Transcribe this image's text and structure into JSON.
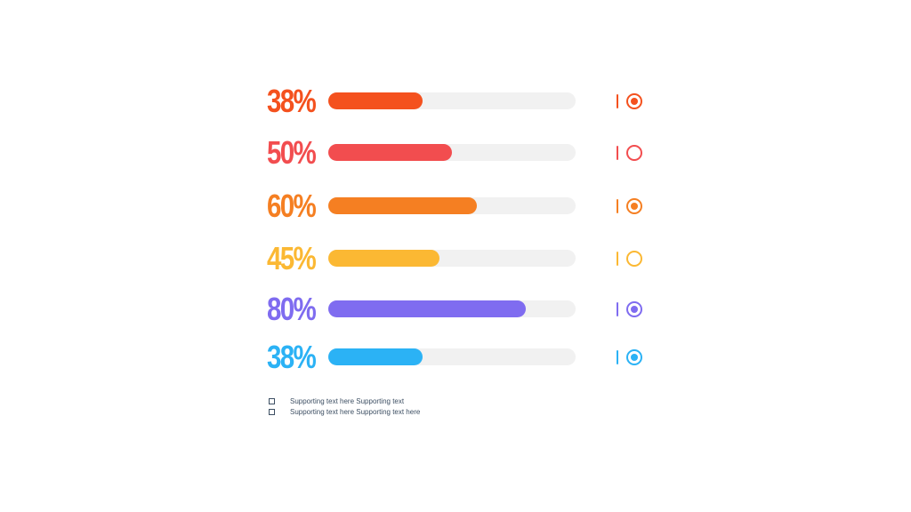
{
  "chart_data": {
    "type": "bar",
    "orientation": "horizontal",
    "range": [
      0,
      100
    ],
    "grid": false,
    "bars": [
      {
        "label": "38%",
        "value": 38,
        "color": "#f4511e",
        "selected": true
      },
      {
        "label": "50%",
        "value": 50,
        "color": "#f24d4f",
        "selected": false
      },
      {
        "label": "60%",
        "value": 60,
        "color": "#f57f22",
        "selected": true
      },
      {
        "label": "45%",
        "value": 45,
        "color": "#fbb833",
        "selected": false
      },
      {
        "label": "80%",
        "value": 80,
        "color": "#7f6cf0",
        "selected": true
      },
      {
        "label": "38%",
        "value": 38,
        "color": "#2bb2f5",
        "selected": true
      }
    ]
  },
  "notes": [
    {
      "text": "Supporting text here Supporting text"
    },
    {
      "text": "Supporting text here Supporting text here"
    }
  ],
  "colors": {
    "track": "#f1f1f1",
    "note_text": "#3d4f63"
  }
}
